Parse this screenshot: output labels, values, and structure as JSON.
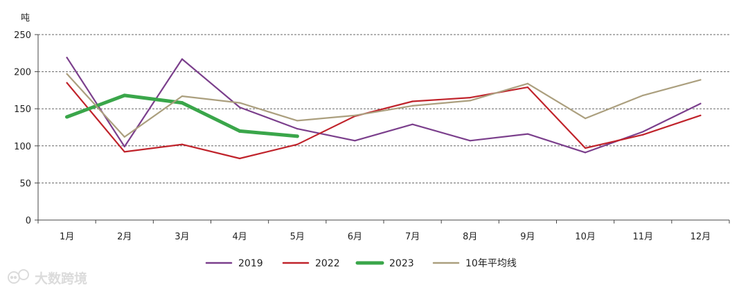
{
  "chart_data": {
    "type": "line",
    "unit_label": "吨",
    "categories": [
      "1月",
      "2月",
      "3月",
      "4月",
      "5月",
      "6月",
      "7月",
      "8月",
      "9月",
      "10月",
      "11月",
      "12月"
    ],
    "ylim": [
      0,
      250
    ],
    "yticks": [
      0,
      50,
      100,
      150,
      200,
      250
    ],
    "grid": true,
    "legend_position": "bottom",
    "series": [
      {
        "name": "2019",
        "color": "#7b3f8c",
        "style": "normal",
        "values": [
          219,
          99,
          217,
          152,
          123,
          107,
          129,
          107,
          116,
          91,
          119,
          157
        ]
      },
      {
        "name": "2022",
        "color": "#c0232b",
        "style": "normal",
        "values": [
          185,
          92,
          102,
          83,
          102,
          140,
          160,
          165,
          179,
          97,
          115,
          141
        ]
      },
      {
        "name": "2023",
        "color": "#3aa64a",
        "style": "bold",
        "values": [
          139,
          168,
          158,
          120,
          113,
          null,
          null,
          null,
          null,
          null,
          null,
          null
        ]
      },
      {
        "name": "10年平均线",
        "color": "#ab9f7e",
        "style": "normal",
        "values": [
          197,
          112,
          167,
          158,
          134,
          141,
          154,
          161,
          184,
          137,
          168,
          189
        ]
      }
    ]
  },
  "watermark": {
    "text": "大数跨境",
    "icon": "chat-bubbles-icon"
  }
}
